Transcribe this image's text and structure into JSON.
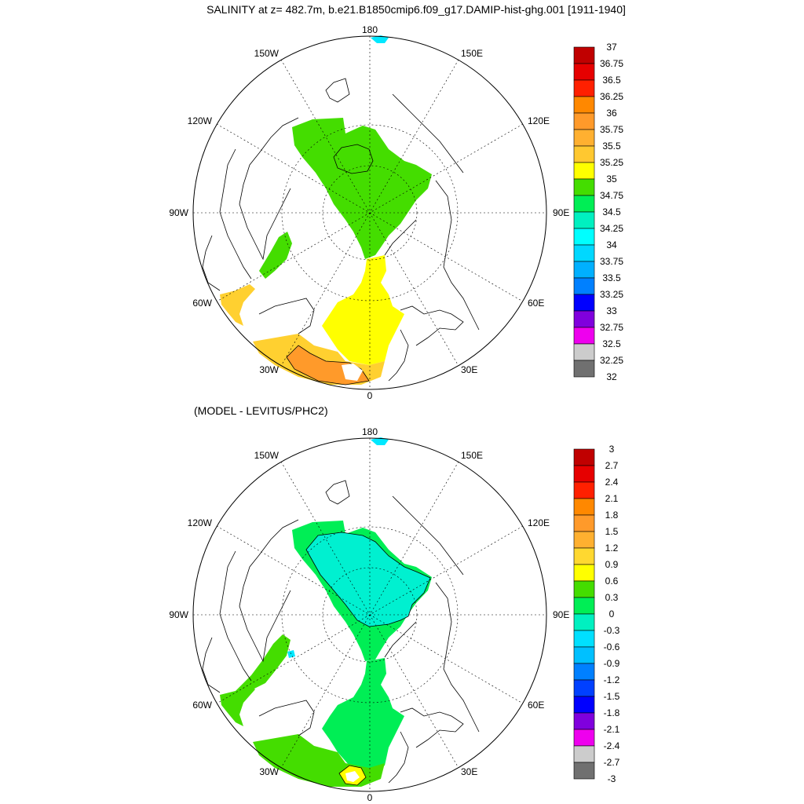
{
  "title": "SALINITY at z= 482.7m, b.e21.B1850cmip6.f09_g17.DAMIP-hist-ghg.001 [1911-1940]",
  "subtitle": "(MODEL - LEVITUS/PHC2)",
  "longitude_labels": {
    "top": "180",
    "bottom": "0",
    "left": "90W",
    "right": "90E",
    "upper_left_a": "150W",
    "upper_left_b": "120W",
    "upper_right_a": "150E",
    "upper_right_b": "120E",
    "lower_left_a": "60W",
    "lower_left_b": "30W",
    "lower_right_a": "60E",
    "lower_right_b": "30E"
  },
  "colorbar_top": {
    "labels": [
      "37",
      "36.75",
      "36.5",
      "36.25",
      "36",
      "35.75",
      "35.5",
      "35.25",
      "35",
      "34.75",
      "34.5",
      "34.25",
      "34",
      "33.75",
      "33.5",
      "33.25",
      "33",
      "32.75",
      "32.5",
      "32.25",
      "32"
    ],
    "colors": [
      "#c00000",
      "#e60000",
      "#ff2000",
      "#ff8800",
      "#ff9a2a",
      "#ffb030",
      "#ffc830",
      "#ffff00",
      "#44dd00",
      "#00ee55",
      "#00f0c0",
      "#00ffff",
      "#00d8ff",
      "#00b0ff",
      "#0080ff",
      "#0000ff",
      "#8000dd",
      "#ee00ee",
      "#cccccc",
      "#707070"
    ]
  },
  "colorbar_bottom": {
    "labels": [
      "3",
      "2.7",
      "2.4",
      "2.1",
      "1.8",
      "1.5",
      "1.2",
      "0.9",
      "0.6",
      "0.3",
      "0",
      "-0.3",
      "-0.6",
      "-0.9",
      "-1.2",
      "-1.5",
      "-1.8",
      "-2.1",
      "-2.4",
      "-2.7",
      "-3"
    ],
    "colors": [
      "#c00000",
      "#e60000",
      "#ff2000",
      "#ff8800",
      "#ff9a2a",
      "#ffb030",
      "#ffd830",
      "#ffff00",
      "#44dd00",
      "#00ee55",
      "#00f0c0",
      "#00e0ff",
      "#00c0ff",
      "#0080ff",
      "#0040ff",
      "#0000ff",
      "#8000dd",
      "#ee00ee",
      "#cccccc",
      "#707070"
    ]
  },
  "colors": {
    "green_top": "#44dd00",
    "yellow_top": "#ffff00",
    "gold_top": "#ffd030",
    "orange_top": "#ff9a2a",
    "cyan_bottom": "#00f0d0",
    "green_bottom": "#00ee55",
    "lime_bottom": "#44dd00",
    "yellow_bottom": "#ffff00",
    "coast": "#000000"
  }
}
